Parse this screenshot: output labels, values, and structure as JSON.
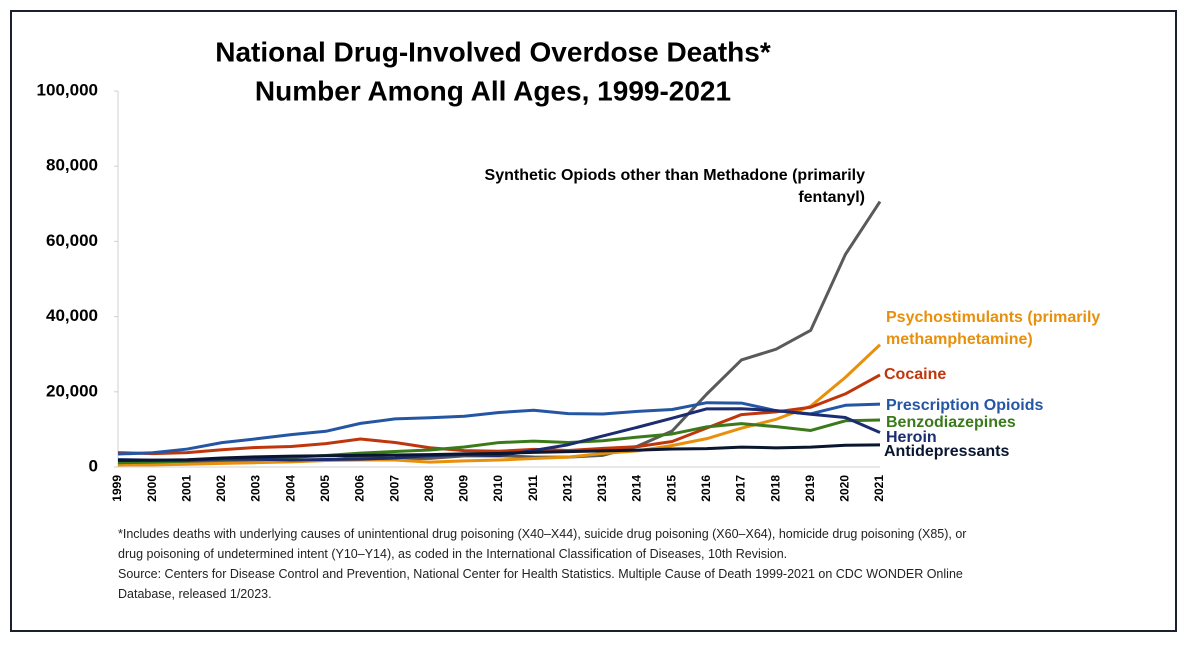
{
  "chart_data": {
    "type": "line",
    "title": "National Drug-Involved Overdose Deaths*",
    "subtitle": "Number Among All Ages, 1999-2021",
    "categories": [
      "1999",
      "2000",
      "2001",
      "2002",
      "2003",
      "2004",
      "2005",
      "2006",
      "2007",
      "2008",
      "2009",
      "2010",
      "2011",
      "2012",
      "2013",
      "2014",
      "2015",
      "2016",
      "2017",
      "2018",
      "2019",
      "2020",
      "2021"
    ],
    "ylim": [
      0,
      100000
    ],
    "yticks": [
      0,
      {
        "value": 20000,
        "label": "20,000"
      },
      {
        "value": 40000,
        "label": "40,000"
      },
      {
        "value": 60000,
        "label": "60,000"
      },
      {
        "value": 80000,
        "label": "80,000"
      },
      {
        "value": 100000,
        "label": "100,000"
      }
    ],
    "series": [
      {
        "name": "Synthetic Opiods other than Methadone (primarily fentanyl)",
        "color": "#5a5a5a",
        "values": [
          730,
          782,
          957,
          1295,
          1400,
          1664,
          1742,
          2707,
          2213,
          2306,
          2946,
          3007,
          2666,
          2628,
          3105,
          5544,
          9580,
          19413,
          28466,
          31335,
          36359,
          56516,
          70601
        ]
      },
      {
        "name": "Psychostimulants (primarily methamphetamine)",
        "color": "#e8900c",
        "values": [
          547,
          578,
          739,
          958,
          1147,
          1355,
          1742,
          1865,
          1859,
          1302,
          1632,
          1854,
          2266,
          2635,
          3627,
          4298,
          5716,
          7542,
          10333,
          12676,
          16167,
          23837,
          32537
        ]
      },
      {
        "name": "Cocaine",
        "color": "#c0360c",
        "values": [
          3822,
          3544,
          3833,
          4599,
          5199,
          5443,
          6208,
          7448,
          6512,
          5129,
          4350,
          4183,
          4681,
          4404,
          4944,
          5415,
          6784,
          10375,
          13942,
          14666,
          15883,
          19447,
          24486
        ]
      },
      {
        "name": "Prescription Opioids",
        "color": "#2456a4",
        "values": [
          3442,
          3785,
          4770,
          6487,
          7500,
          8600,
          9500,
          11600,
          12800,
          13100,
          13500,
          14500,
          15100,
          14200,
          14100,
          14800,
          15300,
          17100,
          17000,
          14975,
          14139,
          16416,
          16706
        ]
      },
      {
        "name": "Benzodiazepines",
        "color": "#3a7a1a",
        "values": [
          1135,
          1298,
          1594,
          2044,
          2248,
          2585,
          3066,
          3691,
          4113,
          4511,
          5306,
          6497,
          6872,
          6524,
          6973,
          7945,
          8791,
          10684,
          11537,
          10724,
          9711,
          12290,
          12499
        ]
      },
      {
        "name": "Heroin",
        "color": "#1c2c70",
        "values": [
          1960,
          1842,
          1779,
          2089,
          2080,
          1878,
          2009,
          2088,
          2399,
          3041,
          3278,
          3036,
          4397,
          5925,
          8257,
          10574,
          12989,
          15469,
          15482,
          14996,
          14019,
          13165,
          9173
        ]
      },
      {
        "name": "Antidepressants",
        "color": "#0a1630",
        "values": [
          1749,
          1810,
          1920,
          2400,
          2700,
          2900,
          3000,
          3100,
          3200,
          3300,
          3500,
          3600,
          3900,
          4100,
          4300,
          4500,
          4800,
          4900,
          5300,
          5100,
          5300,
          5800,
          5900
        ]
      }
    ],
    "footnote": "*Includes deaths with underlying causes of unintentional drug poisoning (X40–X44), suicide drug poisoning (X60–X64), homicide drug poisoning (X85), or drug poisoning of undetermined intent (Y10–Y14), as coded in the International Classification of Diseases, 10th Revision.",
    "source": "Source: Centers for Disease Control and Prevention, National Center for Health Statistics. Multiple Cause of Death 1999-2021 on CDC WONDER Online Database, released 1/2023."
  }
}
